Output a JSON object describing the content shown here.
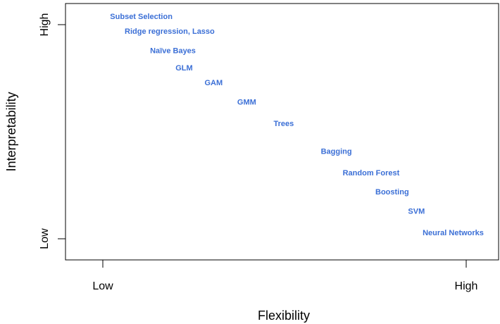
{
  "chart_data": {
    "type": "scatter",
    "xlabel": "Flexibility",
    "ylabel": "Interpretability",
    "x_ticks": [
      "Low",
      "High"
    ],
    "y_ticks": [
      "Low",
      "High"
    ],
    "xlim": [
      0,
      1
    ],
    "ylim": [
      0,
      1
    ],
    "grid": false,
    "label_color": "#3b6fd6",
    "points": [
      {
        "label": "Subset Selection",
        "x": 0.02,
        "y": 1.04
      },
      {
        "label": "Ridge regression, Lasso",
        "x": 0.06,
        "y": 0.97
      },
      {
        "label": "Naïve Bayes",
        "x": 0.13,
        "y": 0.88
      },
      {
        "label": "GLM",
        "x": 0.2,
        "y": 0.8
      },
      {
        "label": "GAM",
        "x": 0.28,
        "y": 0.73
      },
      {
        "label": "GMM",
        "x": 0.37,
        "y": 0.64
      },
      {
        "label": "Trees",
        "x": 0.47,
        "y": 0.54
      },
      {
        "label": "Bagging",
        "x": 0.6,
        "y": 0.41
      },
      {
        "label": "Random Forest",
        "x": 0.66,
        "y": 0.31
      },
      {
        "label": "Boosting",
        "x": 0.75,
        "y": 0.22
      },
      {
        "label": "SVM",
        "x": 0.84,
        "y": 0.13
      },
      {
        "label": "Neural Networks",
        "x": 0.88,
        "y": 0.03
      }
    ]
  }
}
